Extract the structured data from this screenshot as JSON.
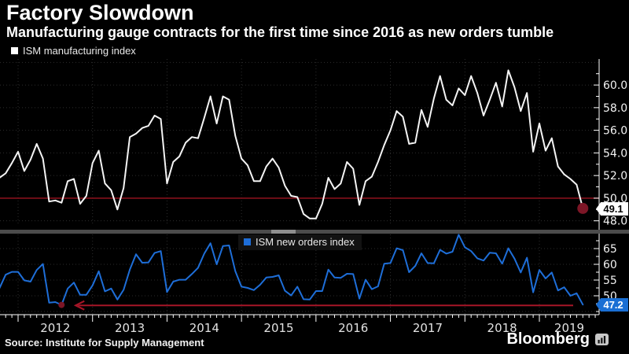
{
  "header": {
    "title": "Factory Slowdown",
    "subtitle": "Manufacturing gauge contracts for the first time since 2016 as new orders tumble"
  },
  "colors": {
    "background": "#000000",
    "grid": "#2d2d2d",
    "axis": "#ffffff",
    "end_dot": "#7c1626",
    "divider": "#4c4c4c",
    "divider_handle": "#8f8f8f",
    "top_tag_bg": "#ffffff",
    "bottom_tag_bg": "#1a6fd4"
  },
  "x_axis": {
    "years": [
      "2012",
      "2013",
      "2014",
      "2015",
      "2016",
      "2017",
      "2018",
      "2019"
    ]
  },
  "chart_data": [
    {
      "type": "line",
      "name": "ISM manufacturing index",
      "legend_label": "ISM manufacturing index",
      "line_color": "#f4f4f4",
      "frequency": "monthly",
      "x_start": "2011-10",
      "x_end": "2019-08",
      "values": [
        51.8,
        52.2,
        53.1,
        54.1,
        52.4,
        53.4,
        54.8,
        53.5,
        49.7,
        49.8,
        49.6,
        51.5,
        51.7,
        49.5,
        50.2,
        53.1,
        54.2,
        51.3,
        50.7,
        49.0,
        50.9,
        55.4,
        55.7,
        56.2,
        56.4,
        57.3,
        57.0,
        51.3,
        53.2,
        53.7,
        54.9,
        55.4,
        55.3,
        57.1,
        59.0,
        56.6,
        59.0,
        58.7,
        55.5,
        53.5,
        52.9,
        51.5,
        51.5,
        52.8,
        53.5,
        52.7,
        51.1,
        50.2,
        50.1,
        48.6,
        48.2,
        48.2,
        49.5,
        51.8,
        50.8,
        51.3,
        53.2,
        52.6,
        49.4,
        51.5,
        51.9,
        53.2,
        54.7,
        56.0,
        57.7,
        57.2,
        54.8,
        54.9,
        57.8,
        56.3,
        58.8,
        60.8,
        58.7,
        58.2,
        59.7,
        59.1,
        60.8,
        59.3,
        57.3,
        58.7,
        60.2,
        58.1,
        61.3,
        59.8,
        57.7,
        59.3,
        54.1,
        56.6,
        54.2,
        55.3,
        52.8,
        52.1,
        51.7,
        51.2,
        49.1
      ],
      "ylim": [
        47.7,
        62.3
      ],
      "yticks": [
        48,
        50,
        52,
        54,
        56,
        58,
        60
      ],
      "ytick_labels": [
        "48.0",
        "50.0",
        "52.0",
        "54.0",
        "56.0",
        "58.0",
        "60.0"
      ],
      "yticks_minor": [
        49,
        51,
        53,
        55,
        57,
        59,
        61
      ],
      "grid_values": [
        48,
        52,
        54,
        56,
        58,
        60,
        62
      ],
      "reference_line": {
        "value": 50.0,
        "color": "#9d1320"
      },
      "last_value": 49.1,
      "last_value_label": "49.1",
      "end_dot_color": "#7c1626"
    },
    {
      "type": "line",
      "name": "ISM new orders index",
      "legend_label": "ISM new orders index",
      "line_color": "#1e6ed8",
      "frequency": "monthly",
      "x_start": "2011-10",
      "x_end": "2019-08",
      "values": [
        52.4,
        56.7,
        57.6,
        57.6,
        54.9,
        54.5,
        58.2,
        60.1,
        47.8,
        48.0,
        47.1,
        52.3,
        54.2,
        50.3,
        50.3,
        53.3,
        57.8,
        51.4,
        52.3,
        48.8,
        51.9,
        58.3,
        63.2,
        60.5,
        60.6,
        63.6,
        64.2,
        51.2,
        54.5,
        55.1,
        55.1,
        56.9,
        58.9,
        63.4,
        66.7,
        60.0,
        65.8,
        66.0,
        57.8,
        52.9,
        52.5,
        51.8,
        53.5,
        55.8,
        56.0,
        56.5,
        51.6,
        50.1,
        52.9,
        48.9,
        48.8,
        51.5,
        51.5,
        58.3,
        55.8,
        55.7,
        57.0,
        56.9,
        49.1,
        55.1,
        52.1,
        53.0,
        60.2,
        60.4,
        65.1,
        64.5,
        57.5,
        59.5,
        63.5,
        60.4,
        60.3,
        64.6,
        63.4,
        64.0,
        69.4,
        65.4,
        64.2,
        61.9,
        61.2,
        63.7,
        63.5,
        60.2,
        65.1,
        61.8,
        57.4,
        62.1,
        51.1,
        58.2,
        55.5,
        57.4,
        51.7,
        52.7,
        50.0,
        50.8,
        47.2
      ],
      "ylim": [
        44,
        69.5
      ],
      "yticks": [
        50,
        55,
        60,
        65
      ],
      "ytick_labels": [
        "50",
        "55",
        "60",
        "65"
      ],
      "yticks_minor": [
        45,
        47.5,
        52.5,
        57.5,
        62.5,
        67.5
      ],
      "grid_values": [
        45,
        50,
        55,
        60,
        65
      ],
      "annotation_arrow": {
        "y": 47.2,
        "points_from_last_value_to": "2012-08",
        "color": "#a61527"
      },
      "low_2012_dot_month_index": 10,
      "last_value": 47.2,
      "last_value_label": "47.2"
    }
  ],
  "footer": {
    "source": "Source: Institute for Supply Management",
    "brand": "Bloomberg"
  }
}
